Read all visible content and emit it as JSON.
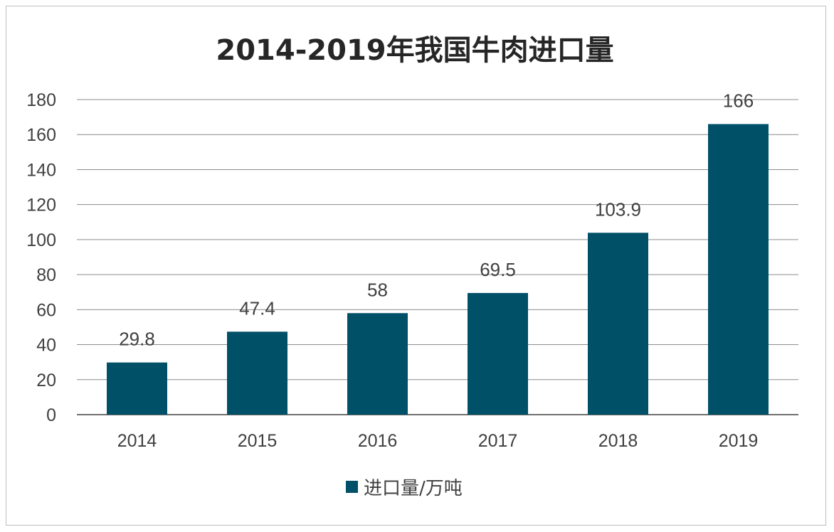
{
  "chart_data": {
    "type": "bar",
    "title": "2014-2019年我国牛肉进口量",
    "categories": [
      "2014",
      "2015",
      "2016",
      "2017",
      "2018",
      "2019"
    ],
    "series": [
      {
        "name": "进口量/万吨",
        "values": [
          29.8,
          47.4,
          58,
          69.5,
          103.9,
          166
        ],
        "labels": [
          "29.8",
          "47.4",
          "58",
          "69.5",
          "103.9",
          "166"
        ],
        "color": "#005068"
      }
    ],
    "y_ticks": [
      "0",
      "20",
      "40",
      "60",
      "80",
      "100",
      "120",
      "140",
      "160",
      "180"
    ],
    "ylim": [
      0,
      180
    ],
    "grid": true,
    "legend_position": "bottom"
  }
}
